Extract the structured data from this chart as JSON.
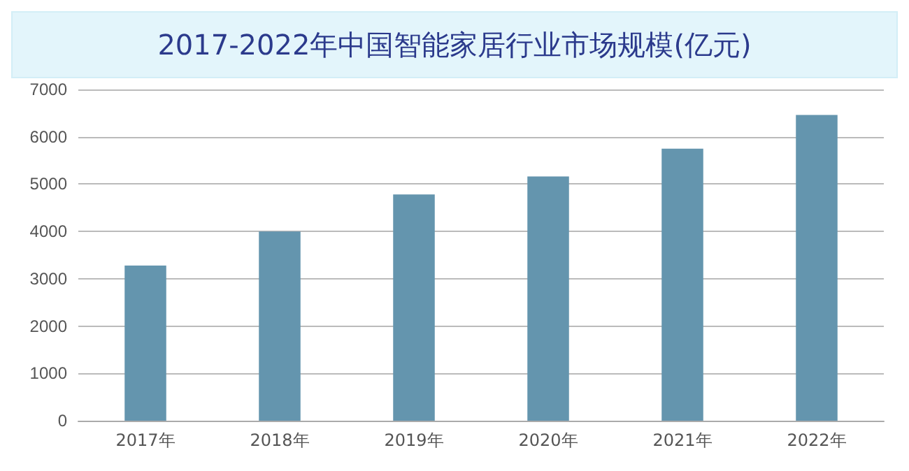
{
  "chart_data": {
    "type": "bar",
    "title": "2017-2022年中国智能家居行业市场规模(亿元)",
    "categories": [
      "2017年",
      "2018年",
      "2019年",
      "2020年",
      "2021年",
      "2022年"
    ],
    "values": [
      3280,
      4000,
      4780,
      5160,
      5750,
      6460
    ],
    "color": "#6495ae",
    "ylim": [
      0,
      7000
    ],
    "yticks": [
      0,
      1000,
      2000,
      3000,
      4000,
      5000,
      6000,
      7000
    ],
    "grid": "y"
  }
}
